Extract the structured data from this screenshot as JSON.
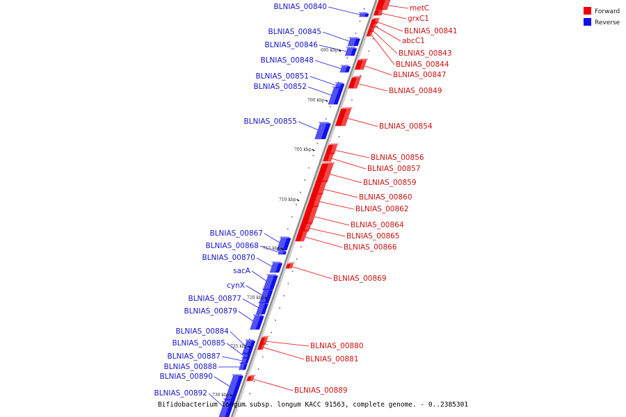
{
  "caption": "Bifidobacterium longum subsp. longum KACC 91563, complete genome. - 0..2385301",
  "legend": [
    {
      "label": "Forward",
      "color": "#ee0000"
    },
    {
      "label": "Reverse",
      "color": "#1010ee"
    }
  ],
  "colors": {
    "forward": "#ee0000",
    "reverse": "#1010ee",
    "backbone": "#8a8a8a"
  },
  "kbp_ticks": [
    "695 kbp",
    "700 kbp",
    "705 kbp",
    "710 kbp",
    "715 kbp",
    "720 kbp",
    "725 kbp",
    "730 kbp"
  ],
  "reverse_genes": [
    "BLNIAS_00840",
    "BLNIAS_00845",
    "BLNIAS_00846",
    "BLNIAS_00848",
    "BLNIAS_00851",
    "BLNIAS_00852",
    "BLNIAS_00855",
    "BLNIAS_00867",
    "BLNIAS_00868",
    "BLNIAS_00870",
    "sacA",
    "cynX",
    "BLNIAS_00877",
    "BLNIAS_00879",
    "BLNIAS_00884",
    "BLNIAS_00885",
    "BLNIAS_00887",
    "BLNIAS_00888",
    "BLNIAS_00890",
    "BLNIAS_00892"
  ],
  "forward_genes": [
    "metC",
    "grxC1",
    "BLNIAS_00841",
    "abcC1",
    "BLNIAS_00843",
    "BLNIAS_00844",
    "BLNIAS_00847",
    "BLNIAS_00849",
    "BLNIAS_00854",
    "BLNIAS_00856",
    "BLNIAS_00857",
    "BLNIAS_00859",
    "BLNIAS_00860",
    "BLNIAS_00862",
    "BLNIAS_00864",
    "BLNIAS_00865",
    "BLNIAS_00866",
    "BLNIAS_00869",
    "BLNIAS_00880",
    "BLNIAS_00881",
    "BLNIAS_00889"
  ]
}
